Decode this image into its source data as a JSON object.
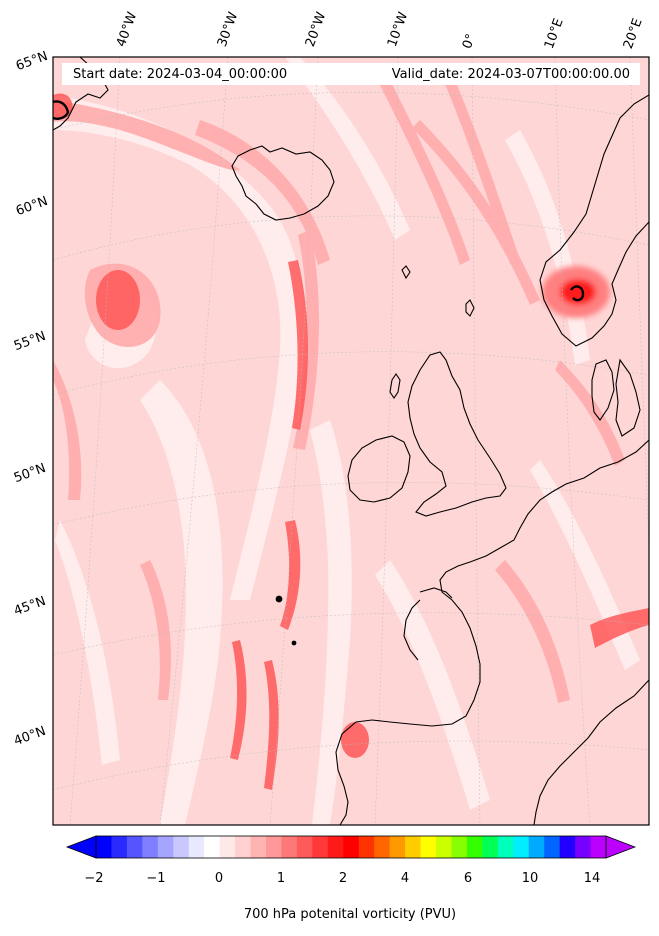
{
  "header": {
    "start_label": "Start date: 2024-03-04_00:00:00",
    "valid_label": "Valid_date: 2024-03-07T00:00:00.00"
  },
  "map": {
    "projection": "stereographic",
    "extent": {
      "lon_min": -50,
      "lon_max": 22,
      "lat_min": 36,
      "lat_max": 66
    },
    "gridline_color": "#bbbbbb",
    "coastline_color": "#000000"
  },
  "lon_labels": [
    "40°W",
    "30°W",
    "20°W",
    "10°W",
    "0°",
    "10°E",
    "20°E"
  ],
  "lat_labels": [
    "65°N",
    "60°N",
    "55°N",
    "50°N",
    "45°N",
    "40°N"
  ],
  "field": {
    "variable": "700 hPa potential vorticity",
    "background_color": "#ffd6d6",
    "features": [
      {
        "name": "Iceland low swirl",
        "lon": -40,
        "lat": 57
      },
      {
        "name": "Norway maximum",
        "lon": 8,
        "lat": 59
      },
      {
        "name": "mid-Atlantic filament",
        "lon": -25,
        "lat": 46
      },
      {
        "name": "Biscay/Alps band",
        "lon": 15,
        "lat": 46
      },
      {
        "name": "Iberian patch",
        "lon": -8,
        "lat": 40
      }
    ]
  },
  "colorbar": {
    "colors": [
      "#0000ff",
      "#2a2aff",
      "#5555ff",
      "#7f7fff",
      "#a5a5ff",
      "#c8c8ff",
      "#e8e8ff",
      "#ffffff",
      "#ffe8e8",
      "#ffd0d0",
      "#ffb4b4",
      "#ff9898",
      "#ff7878",
      "#ff5a5a",
      "#ff3838",
      "#ff1a1a",
      "#ff0000",
      "#ff3300",
      "#ff6600",
      "#ff9900",
      "#ffcc00",
      "#ffff00",
      "#ccff00",
      "#88ff00",
      "#33ff00",
      "#00ff55",
      "#00ffbb",
      "#00eeff",
      "#00aaff",
      "#0066ff",
      "#2200ff",
      "#7700ff",
      "#bb00ff"
    ],
    "ticks": [
      "−2",
      "−1",
      "0",
      "1",
      "2",
      "4",
      "6",
      "10",
      "14"
    ],
    "label": "700 hPa potenital vorticity (PVU)"
  }
}
